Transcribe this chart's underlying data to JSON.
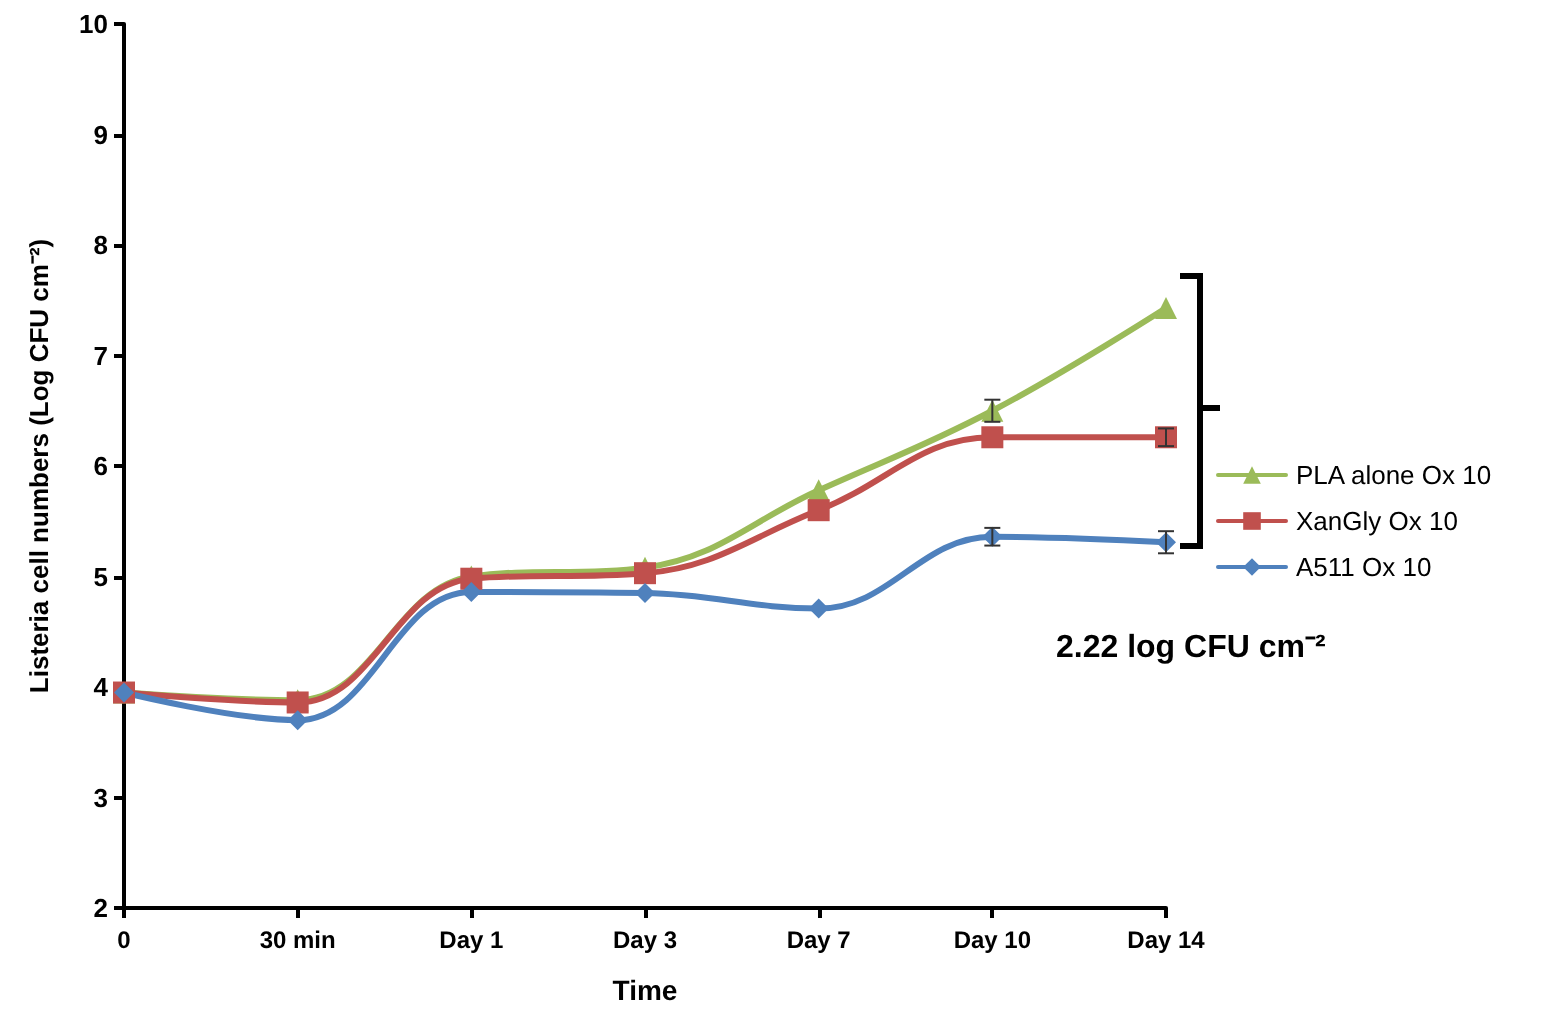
{
  "chart_data": {
    "type": "line",
    "xlabel": "Time",
    "ylabel": "Listeria cell numbers (Log CFU cm⁻²)",
    "categories": [
      "0",
      "30 min",
      "Day 1",
      "Day 3",
      "Day 7",
      "Day 10",
      "Day 14"
    ],
    "series": [
      {
        "name": "PLA alone Ox 10",
        "color": "#9bbb59",
        "marker": "triangle",
        "values": [
          3.95,
          3.88,
          5.0,
          5.08,
          5.78,
          6.5,
          7.43
        ],
        "errors": [
          null,
          null,
          null,
          null,
          null,
          0.1,
          null
        ]
      },
      {
        "name": "XanGly Ox 10",
        "color": "#c0504d",
        "marker": "square",
        "values": [
          3.95,
          3.86,
          4.98,
          5.03,
          5.6,
          6.26,
          6.26
        ],
        "errors": [
          null,
          null,
          null,
          null,
          null,
          null,
          0.08
        ]
      },
      {
        "name": "A511 Ox 10",
        "color": "#4f81bd",
        "marker": "diamond",
        "values": [
          3.95,
          3.7,
          4.86,
          4.85,
          4.71,
          5.36,
          5.31
        ],
        "errors": [
          null,
          null,
          null,
          null,
          null,
          0.08,
          0.1
        ]
      }
    ],
    "ylim": [
      2,
      10
    ],
    "yticks": [
      2,
      3,
      4,
      5,
      6,
      7,
      8,
      9,
      10
    ],
    "grid": false,
    "legend": "right",
    "annotations": [
      "2.22 log CFU cm⁻²"
    ]
  }
}
